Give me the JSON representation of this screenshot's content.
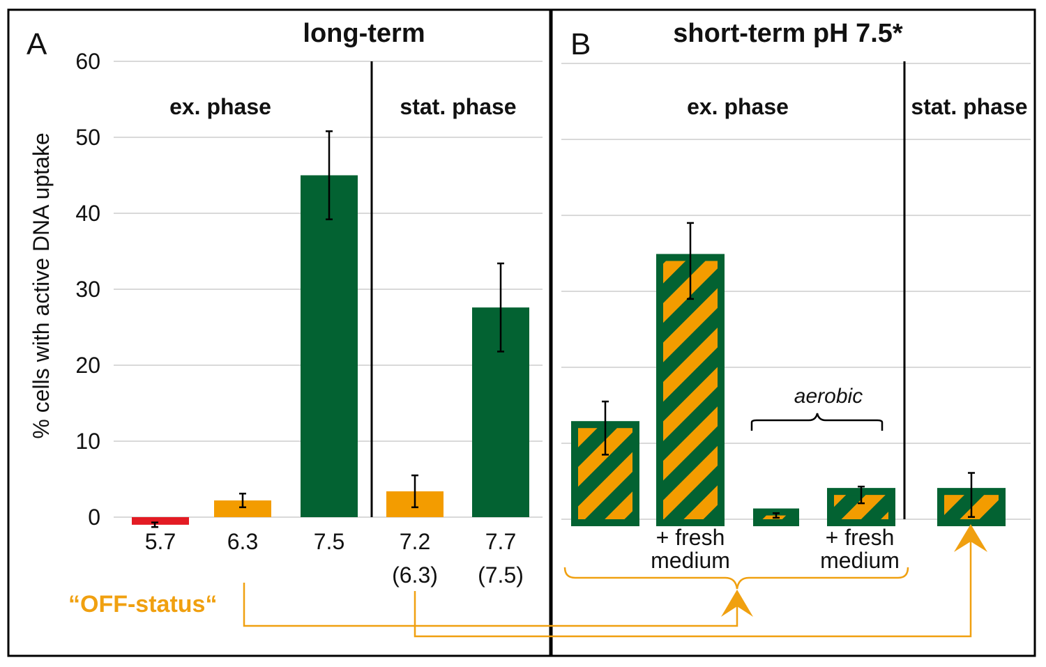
{
  "colors": {
    "green": "#036232",
    "orange": "#f39c00",
    "red": "#e31b23",
    "connector": "#f0a010",
    "grid": "#d9d9d9"
  },
  "chart_data": [
    {
      "type": "bar",
      "panel": "A",
      "title": "long-term",
      "ylabel": "% cells with active DNA uptake",
      "ylim": [
        0,
        60
      ],
      "yticks": [
        "0",
        "10",
        "20",
        "30",
        "40",
        "50",
        "60"
      ],
      "group_labels": [
        "ex. phase",
        "stat. phase"
      ],
      "categories": [
        "5.7",
        "6.3",
        "7.5",
        "7.2",
        "7.7"
      ],
      "sub_labels": [
        "",
        "",
        "",
        "(6.3)",
        "(7.5)"
      ],
      "values": [
        -1,
        2.2,
        45,
        3.4,
        27.6
      ],
      "errors": [
        0.3,
        0.9,
        5.8,
        2.1,
        5.8
      ],
      "fills": [
        "red",
        "orange",
        "green",
        "orange",
        "green"
      ],
      "annotation": "“OFF-status“"
    },
    {
      "type": "bar",
      "panel": "B",
      "title": "short-term pH 7.5*",
      "ylim": [
        0,
        60
      ],
      "group_labels": [
        "ex. phase",
        "stat. phase"
      ],
      "bracket_label": "aerobic",
      "fresh_labels": [
        "+ fresh",
        "medium"
      ],
      "categories": [
        "",
        "+ fresh medium",
        "",
        "+ fresh medium",
        ""
      ],
      "values": [
        12,
        34,
        0.5,
        3.2,
        3.2
      ],
      "errors": [
        3.5,
        5,
        0.3,
        1.1,
        2.9
      ],
      "fill": "hatched orange/green"
    }
  ]
}
